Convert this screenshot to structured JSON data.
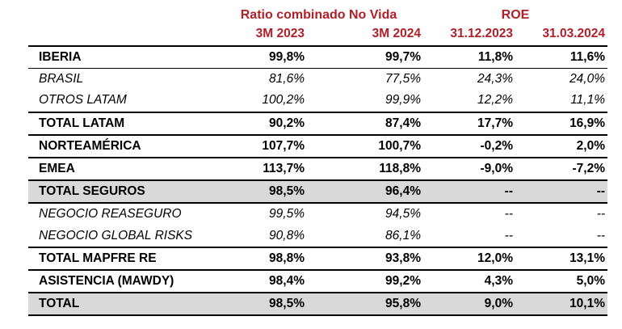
{
  "colors": {
    "header_red": "#B02028",
    "band_gray": "#D9D9D9",
    "border_black": "#000000"
  },
  "header": {
    "group_ratio": "Ratio combinado No Vida",
    "group_roe": "ROE",
    "columns": [
      "3M 2023",
      "3M 2024",
      "31.12.2023",
      "31.03.2024"
    ]
  },
  "table": {
    "rows": [
      {
        "label": "IBERIA",
        "values": [
          "99,8%",
          "99,7%",
          "11,8%",
          "11,6%"
        ]
      },
      {
        "label": "BRASIL",
        "values": [
          "81,6%",
          "77,5%",
          "24,3%",
          "24,0%"
        ]
      },
      {
        "label": "OTROS LATAM",
        "values": [
          "100,2%",
          "99,9%",
          "12,2%",
          "11,1%"
        ]
      },
      {
        "label": "TOTAL LATAM",
        "values": [
          "90,2%",
          "87,4%",
          "17,7%",
          "16,9%"
        ]
      },
      {
        "label": "NORTEAMÉRICA",
        "values": [
          "107,7%",
          "100,7%",
          "-0,2%",
          "2,0%"
        ]
      },
      {
        "label": "EMEA",
        "values": [
          "113,7%",
          "118,8%",
          "-9,0%",
          "-7,2%"
        ]
      },
      {
        "label": "TOTAL SEGUROS",
        "values": [
          "98,5%",
          "96,4%",
          "--",
          "--"
        ]
      },
      {
        "label": "NEGOCIO REASEGURO",
        "values": [
          "99,5%",
          "94,5%",
          "--",
          "--"
        ]
      },
      {
        "label": "NEGOCIO GLOBAL RISKS",
        "values": [
          "90,8%",
          "86,1%",
          "--",
          "--"
        ]
      },
      {
        "label": "TOTAL MAPFRE RE",
        "values": [
          "98,8%",
          "93,8%",
          "12,0%",
          "13,1%"
        ]
      },
      {
        "label": "ASISTENCIA (MAWDY)",
        "values": [
          "98,4%",
          "99,2%",
          "4,3%",
          "5,0%"
        ]
      },
      {
        "label": "TOTAL",
        "values": [
          "98,5%",
          "95,8%",
          "9,0%",
          "10,1%"
        ]
      }
    ]
  }
}
